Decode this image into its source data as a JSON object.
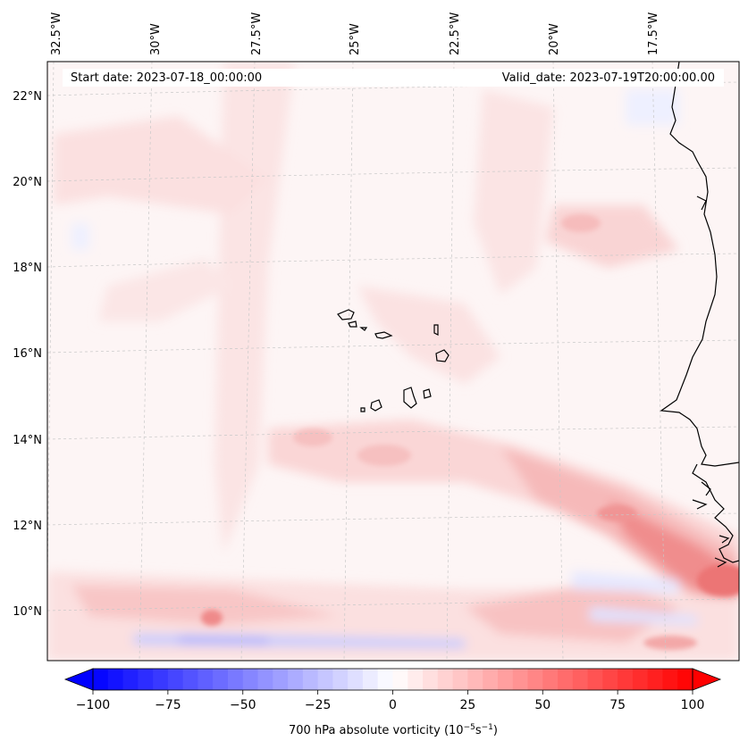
{
  "header": {
    "start_date": "Start date: 2023-07-18_00:00:00",
    "valid_date": "Valid_date: 2023-07-19T20:00:00.00"
  },
  "map": {
    "lon_labels": [
      "32.5°W",
      "30°W",
      "27.5°W",
      "25°W",
      "22.5°W",
      "20°W",
      "17.5°W"
    ],
    "lat_labels": [
      "22°N",
      "20°N",
      "18°N",
      "16°N",
      "14°N",
      "12°N",
      "10°N"
    ],
    "lon_range": [
      -33,
      -15.5
    ],
    "lat_range": [
      9,
      22.8
    ],
    "gridlines": true,
    "colors": {
      "background_field": "#fdf5f5",
      "light_red": "#fcdcdc",
      "medium_red": "#f8b8b8",
      "strong_red": "#f08080",
      "light_blue": "#e3e6ff",
      "medium_blue": "#b9bfff",
      "coastline": "#000000"
    }
  },
  "colorbar": {
    "label": "700 hPa absolute vorticity (10",
    "label_exp1": "−5",
    "label_mid": "s",
    "label_exp2": "−1",
    "label_end": ")",
    "ticks": [
      "−100",
      "−75",
      "−50",
      "−25",
      "0",
      "25",
      "50",
      "75",
      "100"
    ],
    "range": [
      -100,
      100
    ],
    "levels": 41,
    "colormap": "bwr",
    "extend": "both"
  }
}
